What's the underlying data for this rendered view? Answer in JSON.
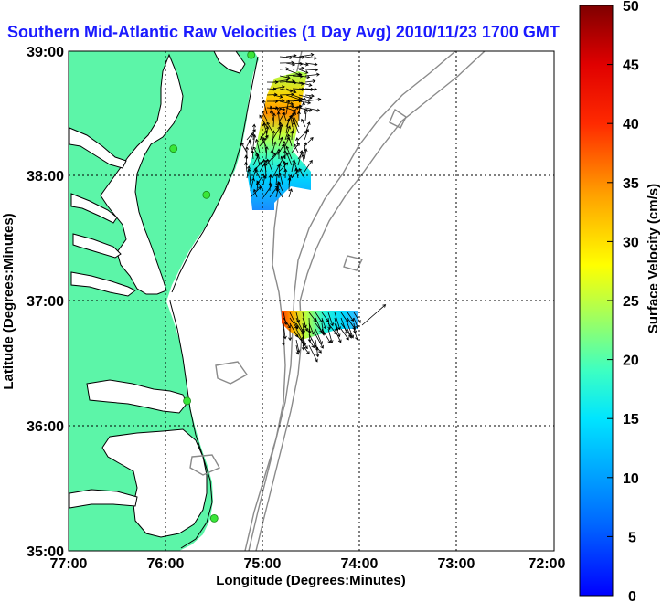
{
  "title": "Southern Mid-Atlantic Raw Velocities (1 Day Avg) 2010/11/23 1700 GMT",
  "colors": {
    "title": "#1b1bff",
    "land": "#5cf5a8",
    "water": "#ffffff",
    "bathymetry": "#8a8a8a",
    "station": "#39e639"
  },
  "map": {
    "x_label": "Longitude (Degrees:Minutes)",
    "y_label": "Latitude (Degrees:Minutes)",
    "x_ticks": [
      "77:00",
      "76:00",
      "75:00",
      "74:00",
      "73:00",
      "72:00"
    ],
    "y_ticks": [
      "39:00",
      "38:00",
      "37:00",
      "36:00",
      "35:00"
    ],
    "lon_range_west": [
      77,
      72
    ],
    "lat_range": [
      35,
      39
    ],
    "grid": "dotted"
  },
  "colorbar": {
    "label": "Surface Velocity (cm/s)",
    "units": "cm/s",
    "min": 0,
    "max": 50,
    "ticks": [
      "50",
      "45",
      "40",
      "35",
      "30",
      "25",
      "20",
      "15",
      "10",
      "5",
      "0"
    ],
    "colormap": "jet"
  },
  "stations": [
    {
      "lat": 38.97,
      "lon_w": 75.12
    },
    {
      "lat": 38.22,
      "lon_w": 75.92
    },
    {
      "lat": 37.85,
      "lon_w": 75.58
    },
    {
      "lat": 36.2,
      "lon_w": 75.78
    },
    {
      "lat": 35.26,
      "lon_w": 75.5
    }
  ]
}
